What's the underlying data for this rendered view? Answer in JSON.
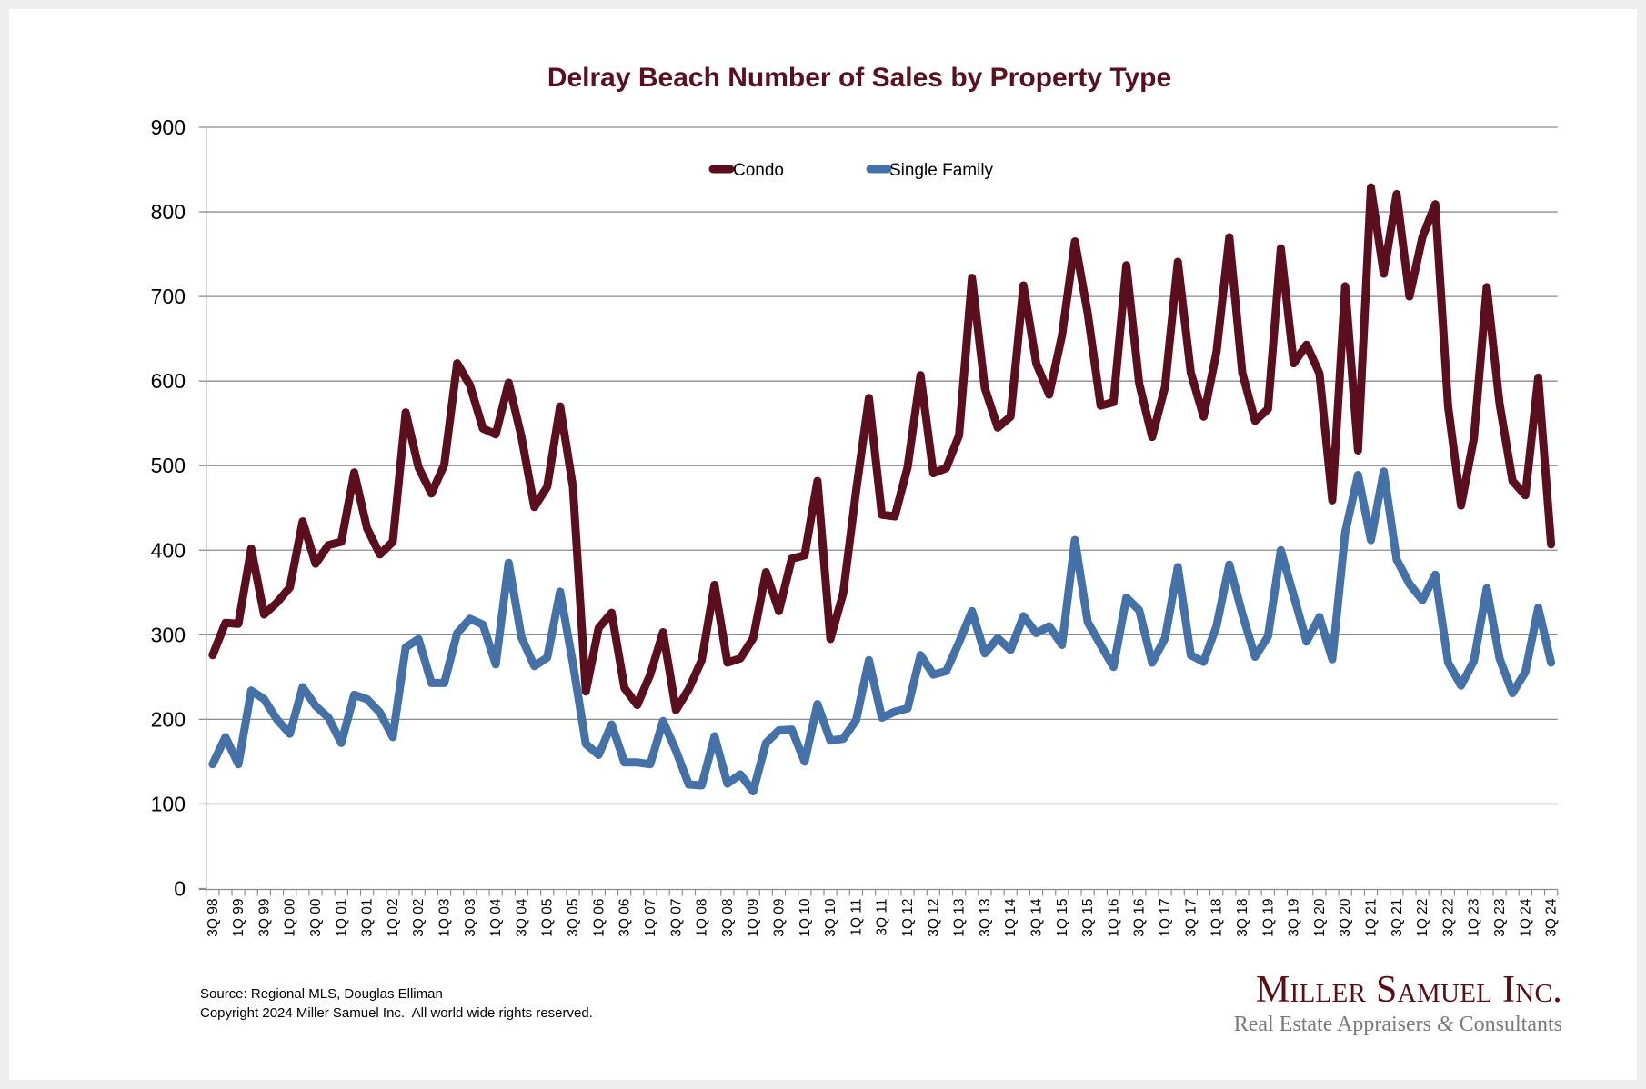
{
  "chart_data": {
    "type": "line",
    "title": "Delray Beach Number of Sales by Property Type",
    "xlabel": "",
    "ylabel": "",
    "ylim": [
      0,
      900
    ],
    "yticks": [
      0,
      100,
      200,
      300,
      400,
      500,
      600,
      700,
      800,
      900
    ],
    "grid": true,
    "legend_position": "top-center",
    "x": [
      "3Q 98",
      "4Q 98",
      "1Q 99",
      "2Q 99",
      "3Q 99",
      "4Q 99",
      "1Q 00",
      "2Q 00",
      "3Q 00",
      "4Q 00",
      "1Q 01",
      "2Q 01",
      "3Q 01",
      "4Q 01",
      "1Q 02",
      "2Q 02",
      "3Q 02",
      "4Q 02",
      "1Q 03",
      "2Q 03",
      "3Q 03",
      "4Q 03",
      "1Q 04",
      "2Q 04",
      "3Q 04",
      "4Q 04",
      "1Q 05",
      "2Q 05",
      "3Q 05",
      "4Q 05",
      "1Q 06",
      "2Q 06",
      "3Q 06",
      "4Q 06",
      "1Q 07",
      "2Q 07",
      "3Q 07",
      "4Q 07",
      "1Q 08",
      "2Q 08",
      "3Q 08",
      "4Q 08",
      "1Q 09",
      "2Q 09",
      "3Q 09",
      "4Q 09",
      "1Q 10",
      "2Q 10",
      "3Q 10",
      "4Q 10",
      "1Q 11",
      "2Q 11",
      "3Q 11",
      "4Q 11",
      "1Q 12",
      "2Q 12",
      "3Q 12",
      "4Q 12",
      "1Q 13",
      "2Q 13",
      "3Q 13",
      "4Q 13",
      "1Q 14",
      "2Q 14",
      "3Q 14",
      "4Q 14",
      "1Q 15",
      "2Q 15",
      "3Q 15",
      "4Q 15",
      "1Q 16",
      "2Q 16",
      "3Q 16",
      "4Q 16",
      "1Q 17",
      "2Q 17",
      "3Q 17",
      "4Q 17",
      "1Q 18",
      "2Q 18",
      "3Q 18",
      "4Q 18",
      "1Q 19",
      "2Q 19",
      "3Q 19",
      "4Q 19",
      "1Q 20",
      "2Q 20",
      "3Q 20",
      "4Q 20",
      "1Q 21",
      "2Q 21",
      "3Q 21",
      "4Q 21",
      "1Q 22",
      "2Q 22",
      "3Q 22",
      "4Q 22",
      "1Q 23",
      "2Q 23",
      "3Q 23",
      "4Q 23",
      "1Q 24",
      "2Q 24",
      "3Q 24"
    ],
    "xtick_labels": [
      "3Q 98",
      "1Q 99",
      "3Q 99",
      "1Q 00",
      "3Q 00",
      "1Q 01",
      "3Q 01",
      "1Q 02",
      "3Q 02",
      "1Q 03",
      "3Q 03",
      "1Q 04",
      "3Q 04",
      "1Q 05",
      "3Q 05",
      "1Q 06",
      "3Q 06",
      "1Q 07",
      "3Q 07",
      "1Q 08",
      "3Q 08",
      "1Q 09",
      "3Q 09",
      "1Q 10",
      "3Q 10",
      "1Q 11",
      "3Q 11",
      "1Q 12",
      "3Q 12",
      "1Q 13",
      "3Q 13",
      "1Q 14",
      "3Q 14",
      "1Q 15",
      "3Q 15",
      "1Q 16",
      "3Q 16",
      "1Q 17",
      "3Q 17",
      "1Q 18",
      "3Q 18",
      "1Q 19",
      "3Q 19",
      "1Q 20",
      "3Q 20",
      "1Q 21",
      "3Q 21",
      "1Q 22",
      "3Q 22",
      "1Q 23",
      "3Q 23",
      "1Q 24",
      "3Q 24"
    ],
    "series": [
      {
        "name": "Condo",
        "color": "#5a0e1e",
        "values": [
          276,
          314,
          313,
          402,
          324,
          338,
          356,
          434,
          384,
          406,
          410,
          492,
          426,
          395,
          410,
          563,
          498,
          467,
          501,
          621,
          595,
          544,
          537,
          598,
          534,
          451,
          475,
          570,
          475,
          233,
          308,
          326,
          237,
          217,
          253,
          303,
          211,
          236,
          270,
          359,
          267,
          272,
          296,
          374,
          328,
          390,
          394,
          482,
          295,
          349,
          470,
          580,
          442,
          440,
          498,
          607,
          491,
          497,
          536,
          722,
          592,
          545,
          558,
          713,
          621,
          584,
          654,
          765,
          680,
          571,
          575,
          737,
          597,
          534,
          593,
          741,
          610,
          558,
          634,
          770,
          610,
          553,
          567,
          757,
          621,
          643,
          609,
          459,
          712,
          518,
          829,
          727,
          821,
          700,
          770,
          809,
          570,
          453,
          532,
          711,
          573,
          482,
          465,
          604,
          407
        ]
      },
      {
        "name": "Single Family",
        "color": "#4472a8",
        "values": [
          147,
          179,
          147,
          234,
          224,
          200,
          183,
          238,
          216,
          202,
          172,
          229,
          224,
          208,
          179,
          285,
          295,
          243,
          243,
          302,
          319,
          312,
          265,
          385,
          297,
          263,
          273,
          351,
          266,
          171,
          158,
          194,
          149,
          149,
          147,
          198,
          163,
          123,
          122,
          180,
          124,
          135,
          115,
          172,
          187,
          188,
          150,
          218,
          175,
          177,
          199,
          270,
          202,
          209,
          213,
          276,
          253,
          257,
          291,
          328,
          278,
          296,
          282,
          322,
          302,
          310,
          288,
          412,
          315,
          288,
          262,
          344,
          329,
          267,
          296,
          380,
          276,
          268,
          310,
          383,
          325,
          274,
          298,
          400,
          346,
          292,
          321,
          271,
          421,
          489,
          412,
          493,
          389,
          360,
          341,
          371,
          267,
          240,
          269,
          355,
          272,
          231,
          256,
          332,
          267
        ]
      }
    ]
  },
  "footer": {
    "source": "Source: Regional MLS, Douglas Elliman",
    "copyright": "Copyright 2024 Miller Samuel Inc.  All world wide rights reserved."
  },
  "logo": {
    "name": "Miller Samuel Inc.",
    "tagline_pre": "Real Estate Appraisers ",
    "tagline_amp": "&",
    "tagline_post": " Consultants"
  }
}
